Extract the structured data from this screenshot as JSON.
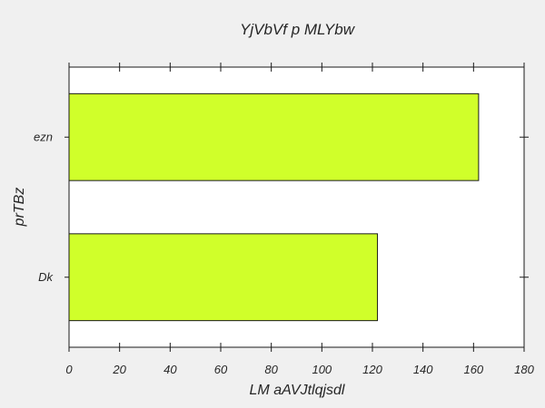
{
  "chart_data": {
    "type": "bar",
    "orientation": "horizontal",
    "title": "YjVbVf p MLYbw",
    "xlabel": "LM aAVJtlqjsdl",
    "ylabel": "prTBz",
    "categories": [
      "Dk",
      "ezn"
    ],
    "values": [
      122,
      162
    ],
    "xlim": [
      0,
      180
    ],
    "xticks": [
      0,
      20,
      40,
      60,
      80,
      100,
      120,
      140,
      160,
      180
    ],
    "grid": false,
    "colors": {
      "bar": "#d0ff2a",
      "bar_edge": "#1a1a1a",
      "plot_bg": "#ffffff",
      "figure_bg": "#f0f0f0"
    }
  }
}
